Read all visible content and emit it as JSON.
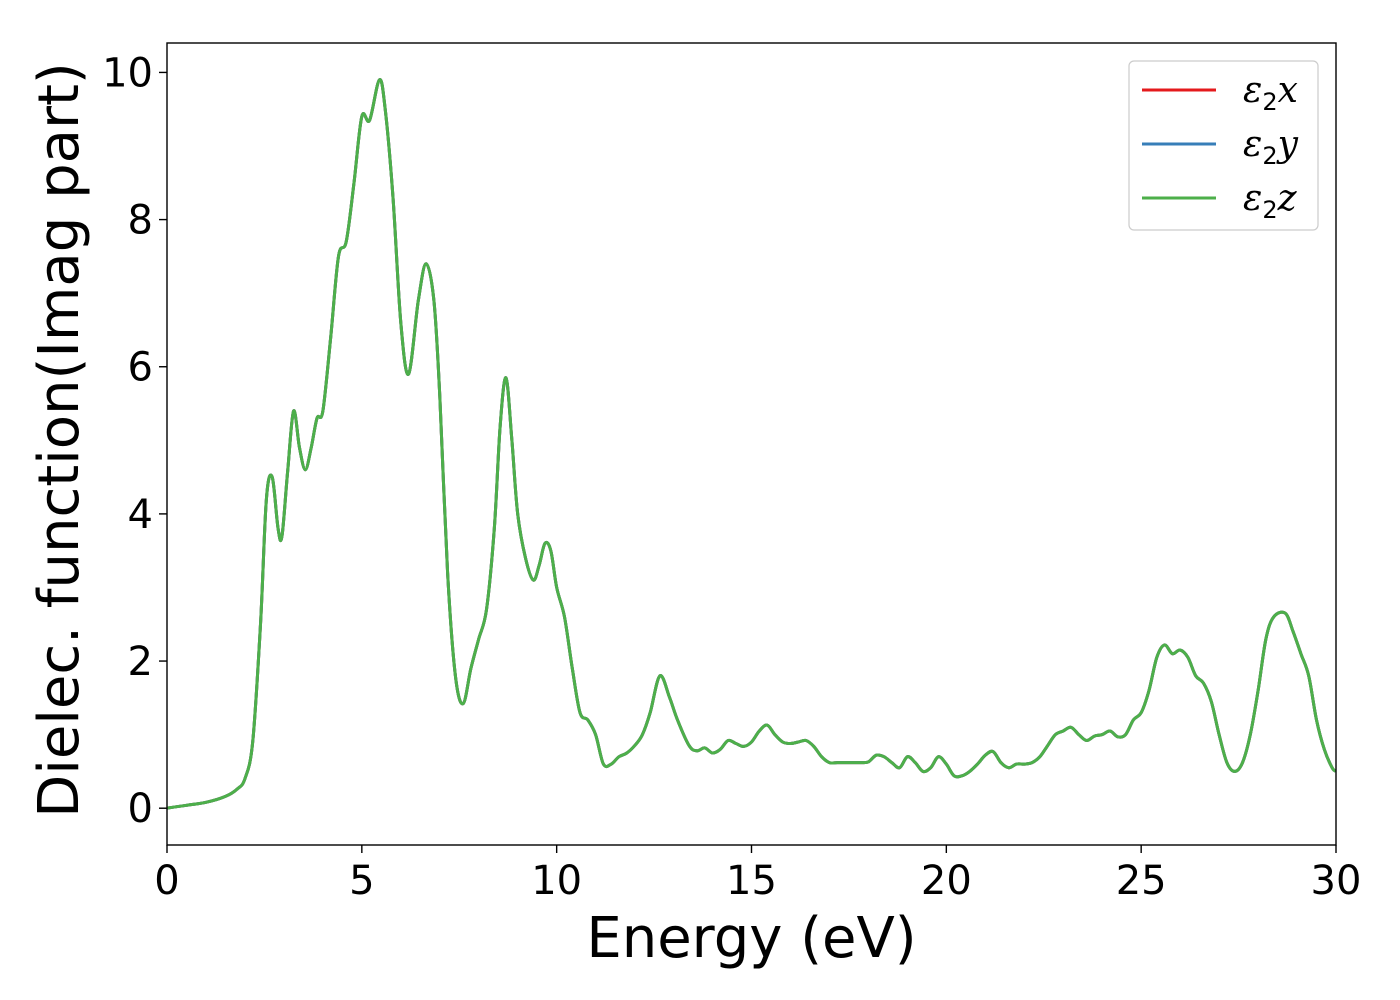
{
  "chart_data": {
    "type": "line",
    "xlabel": "Energy (eV)",
    "ylabel": "Dielec. function(Imag part)",
    "xlim": [
      0,
      30
    ],
    "ylim": [
      -0.5,
      10.4
    ],
    "xticks": [
      "0",
      "5",
      "10",
      "15",
      "20",
      "25",
      "30"
    ],
    "yticks": [
      "0",
      "2",
      "4",
      "6",
      "8",
      "10"
    ],
    "grid": false,
    "legend_position": "top-right",
    "series": [
      {
        "name": "ε2x",
        "label_base": "ε",
        "label_sub": "2",
        "label_var": "x",
        "color": "#e41a1c"
      },
      {
        "name": "ε2y",
        "label_base": "ε",
        "label_sub": "2",
        "label_var": "y",
        "color": "#377eb8"
      },
      {
        "name": "ε2z",
        "label_base": "ε",
        "label_sub": "2",
        "label_var": "z",
        "color": "#4daf4a"
      }
    ],
    "x": [
      0,
      0.5,
      1.0,
      1.5,
      1.8,
      2.0,
      2.2,
      2.4,
      2.55,
      2.7,
      2.85,
      2.95,
      3.1,
      3.25,
      3.4,
      3.55,
      3.7,
      3.85,
      4.0,
      4.2,
      4.4,
      4.6,
      4.8,
      5.0,
      5.2,
      5.45,
      5.6,
      5.8,
      6.0,
      6.2,
      6.45,
      6.65,
      6.85,
      7.0,
      7.2,
      7.4,
      7.6,
      7.8,
      8.0,
      8.2,
      8.4,
      8.55,
      8.7,
      8.85,
      9.0,
      9.2,
      9.4,
      9.55,
      9.7,
      9.85,
      10.0,
      10.2,
      10.4,
      10.6,
      10.8,
      11.0,
      11.2,
      11.4,
      11.6,
      11.8,
      12.0,
      12.2,
      12.4,
      12.65,
      12.9,
      13.1,
      13.4,
      13.6,
      13.8,
      14.0,
      14.2,
      14.4,
      14.6,
      14.8,
      15.0,
      15.2,
      15.4,
      15.6,
      15.8,
      16.0,
      16.2,
      16.4,
      16.6,
      16.8,
      17.0,
      17.2,
      17.5,
      17.8,
      18.0,
      18.2,
      18.4,
      18.6,
      18.8,
      19.0,
      19.2,
      19.4,
      19.6,
      19.8,
      20.0,
      20.2,
      20.4,
      20.6,
      20.8,
      21.0,
      21.2,
      21.4,
      21.6,
      21.8,
      22.0,
      22.2,
      22.4,
      22.6,
      22.8,
      23.0,
      23.2,
      23.4,
      23.6,
      23.8,
      24.0,
      24.2,
      24.4,
      24.6,
      24.8,
      25.0,
      25.2,
      25.4,
      25.6,
      25.8,
      26.0,
      26.2,
      26.4,
      26.6,
      26.8,
      27.0,
      27.2,
      27.4,
      27.6,
      27.8,
      28.0,
      28.2,
      28.4,
      28.7,
      28.9,
      29.1,
      29.3,
      29.5,
      29.7,
      29.9,
      30.0
    ],
    "y": [
      0.0,
      0.04,
      0.08,
      0.16,
      0.26,
      0.4,
      0.9,
      2.5,
      4.2,
      4.5,
      3.8,
      3.7,
      4.6,
      5.4,
      4.9,
      4.6,
      4.9,
      5.3,
      5.4,
      6.4,
      7.5,
      7.7,
      8.5,
      9.4,
      9.35,
      9.9,
      9.5,
      8.3,
      6.6,
      5.9,
      6.9,
      7.4,
      6.9,
      5.6,
      3.2,
      1.8,
      1.42,
      1.9,
      2.3,
      2.7,
      3.8,
      5.2,
      5.85,
      5.0,
      4.0,
      3.4,
      3.1,
      3.3,
      3.6,
      3.5,
      3.0,
      2.6,
      1.9,
      1.3,
      1.2,
      1.0,
      0.6,
      0.6,
      0.7,
      0.75,
      0.85,
      1.0,
      1.3,
      1.8,
      1.5,
      1.2,
      0.85,
      0.78,
      0.82,
      0.75,
      0.8,
      0.92,
      0.88,
      0.84,
      0.9,
      1.05,
      1.13,
      1.0,
      0.9,
      0.88,
      0.9,
      0.92,
      0.84,
      0.7,
      0.62,
      0.62,
      0.62,
      0.62,
      0.63,
      0.72,
      0.7,
      0.62,
      0.55,
      0.7,
      0.62,
      0.5,
      0.55,
      0.7,
      0.6,
      0.44,
      0.44,
      0.5,
      0.6,
      0.72,
      0.77,
      0.62,
      0.55,
      0.6,
      0.6,
      0.62,
      0.7,
      0.85,
      1.0,
      1.05,
      1.1,
      1.0,
      0.92,
      0.98,
      1.0,
      1.05,
      0.97,
      1.0,
      1.2,
      1.3,
      1.6,
      2.05,
      2.22,
      2.1,
      2.15,
      2.05,
      1.8,
      1.7,
      1.45,
      1.0,
      0.62,
      0.5,
      0.62,
      1.0,
      1.6,
      2.3,
      2.6,
      2.65,
      2.4,
      2.1,
      1.8,
      1.2,
      0.8,
      0.55,
      0.5
    ]
  }
}
